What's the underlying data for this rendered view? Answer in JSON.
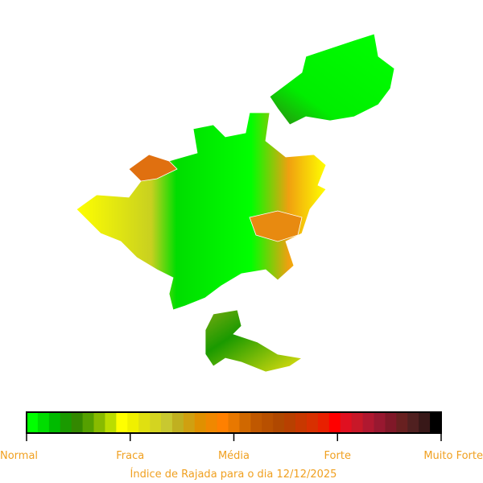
{
  "colorbar": {
    "labels": [
      "Normal",
      "Fraca",
      "Média",
      "Forte",
      "Muito Forte"
    ],
    "colors": [
      "#00ff00",
      "#00dd00",
      "#00bb00",
      "#1a9a00",
      "#338800",
      "#55a000",
      "#88bb00",
      "#bbdd00",
      "#ffff00",
      "#f0f000",
      "#e0e010",
      "#d4d420",
      "#c8c830",
      "#c0b020",
      "#d0a010",
      "#e09000",
      "#f08800",
      "#ff8000",
      "#e87800",
      "#d06800",
      "#c05800",
      "#b85000",
      "#b04800",
      "#b84000",
      "#c83800",
      "#d83000",
      "#e82000",
      "#ff0000",
      "#e01020",
      "#c81828",
      "#b01830",
      "#981830",
      "#801828",
      "#682020",
      "#502020",
      "#381818",
      "#000000"
    ]
  },
  "caption": "Índice de Rajada para o dia 12/12/2025"
}
